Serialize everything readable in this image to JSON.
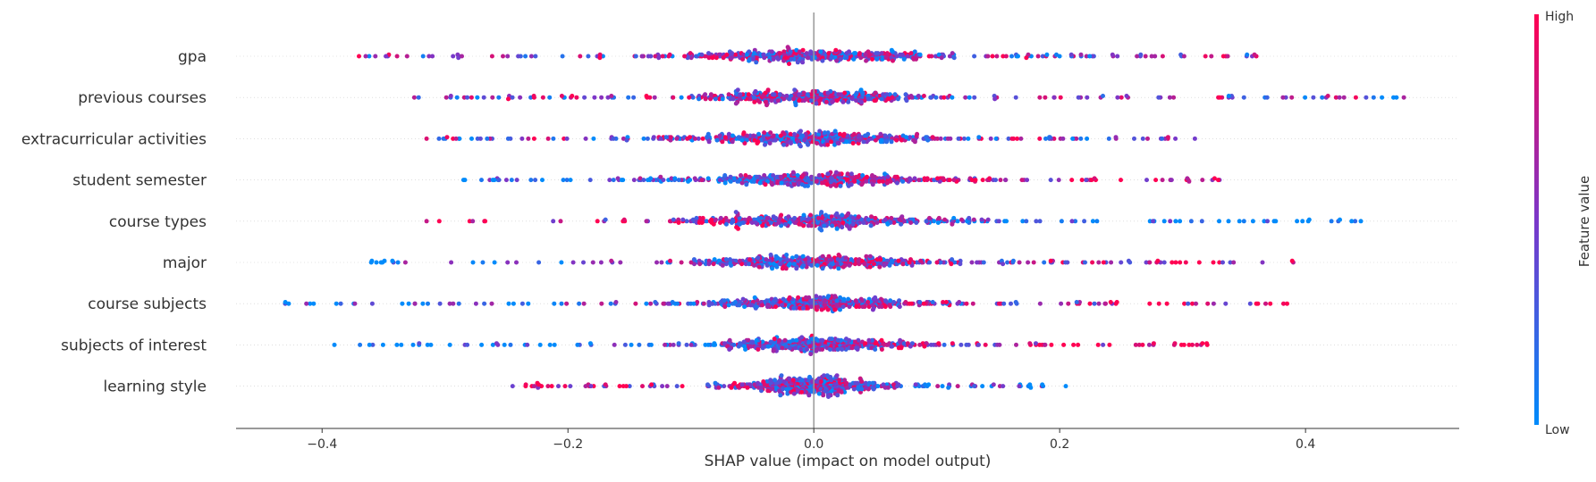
{
  "chart_data": {
    "type": "scatter",
    "subtype": "shap-beeswarm",
    "title": "",
    "xlabel": "SHAP value (impact on model output)",
    "ylabel": "",
    "xlim": [
      -0.47,
      0.525
    ],
    "x_ticks": [
      -0.4,
      -0.2,
      0.0,
      0.2,
      0.4
    ],
    "x_tick_labels": [
      "−0.4",
      "−0.2",
      "0.0",
      "0.2",
      "0.4"
    ],
    "zero_line": 0,
    "grid": false,
    "colorbar": {
      "label": "Feature value",
      "high_label": "High",
      "low_label": "Low",
      "low_color": "#008bfb",
      "mid_color": "#7b37c9",
      "high_color": "#ff0052"
    },
    "features": [
      {
        "name": "gpa",
        "min": -0.37,
        "max": 0.36,
        "spread": 0.1,
        "color_trend": 0
      },
      {
        "name": "previous courses",
        "min": -0.325,
        "max": 0.48,
        "spread": 0.085,
        "color_trend": 0
      },
      {
        "name": "extracurricular activities",
        "min": -0.315,
        "max": 0.31,
        "spread": 0.09,
        "color_trend": 0
      },
      {
        "name": "student semester",
        "min": -0.285,
        "max": 0.33,
        "spread": 0.095,
        "color_trend": 0.5
      },
      {
        "name": "course types",
        "min": -0.315,
        "max": 0.445,
        "spread": 0.1,
        "color_trend": -0.5
      },
      {
        "name": "major",
        "min": -0.36,
        "max": 0.39,
        "spread": 0.09,
        "color_trend": 0.3
      },
      {
        "name": "course subjects",
        "min": -0.43,
        "max": 0.385,
        "spread": 0.085,
        "color_trend": 0.3
      },
      {
        "name": "subjects of interest",
        "min": -0.39,
        "max": 0.32,
        "spread": 0.075,
        "color_trend": 0.6
      },
      {
        "name": "learning style",
        "min": -0.245,
        "max": 0.205,
        "spread": 0.06,
        "color_trend": -0.5
      }
    ]
  }
}
